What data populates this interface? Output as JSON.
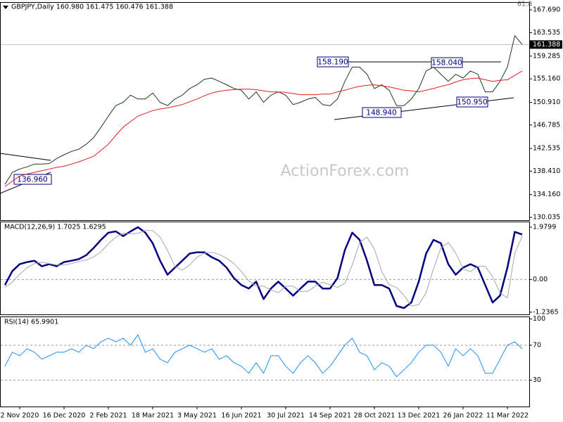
{
  "chart_data": [
    {
      "type": "line",
      "title": "GBPJPY,Daily  160.980 161.475 160.476 161.388",
      "watermark": "ActionForex.com",
      "annotations": [
        "158.190",
        "158.040",
        "148.940",
        "150.950",
        "136.960",
        "61.8"
      ],
      "current_price": 161.388,
      "categories": [
        null,
        null,
        "2 Nov 2020",
        null,
        null,
        null,
        null,
        null,
        "16 Dec 2020",
        null,
        null,
        null,
        null,
        null,
        "2 Feb 2021",
        null,
        null,
        null,
        null,
        null,
        "18 Mar 2021",
        null,
        null,
        null,
        null,
        null,
        "3 May 2021",
        null,
        null,
        null,
        null,
        null,
        "16 Jun 2021",
        null,
        null,
        null,
        null,
        null,
        "30 Jul 2021",
        null,
        null,
        null,
        null,
        null,
        "14 Sep 2021",
        null,
        null,
        null,
        null,
        null,
        "28 Oct 2021",
        null,
        null,
        null,
        null,
        null,
        "13 Dec 2021",
        null,
        null,
        null,
        null,
        null,
        "26 Jan 2022",
        null,
        null,
        null,
        null,
        null,
        "11 Mar 2022",
        null,
        null
      ],
      "series": [
        {
          "name": "GBPJPY",
          "color": "#1e3a1e",
          "values": [
            136.0,
            138.2,
            138.8,
            139.2,
            139.7,
            139.7,
            139.8,
            140.7,
            141.4,
            142.0,
            142.4,
            143.3,
            144.5,
            146.4,
            148.4,
            150.3,
            150.9,
            152.2,
            151.5,
            151.5,
            152.6,
            150.9,
            150.3,
            151.5,
            152.2,
            153.4,
            154.1,
            155.1,
            155.3,
            154.7,
            154.1,
            153.4,
            153.1,
            151.5,
            152.8,
            150.9,
            152.2,
            152.8,
            152.2,
            150.5,
            150.9,
            151.5,
            151.8,
            150.5,
            150.3,
            151.5,
            154.7,
            157.3,
            157.3,
            156.0,
            153.4,
            154.1,
            153.1,
            150.3,
            150.3,
            151.5,
            153.4,
            156.6,
            157.3,
            156.0,
            154.7,
            156.0,
            155.3,
            156.6,
            156.0,
            152.8,
            152.8,
            154.7,
            157.3,
            163.0,
            161.388
          ]
        },
        {
          "name": "MA",
          "color": "#e02020",
          "values": [
            135.6,
            136.6,
            137.5,
            137.9,
            138.2,
            138.5,
            138.8,
            139.1,
            139.3,
            139.7,
            140.1,
            140.6,
            141.1,
            142.2,
            143.3,
            144.9,
            146.4,
            147.4,
            148.4,
            148.9,
            149.4,
            149.7,
            149.9,
            150.2,
            150.5,
            151.0,
            151.5,
            152.1,
            152.6,
            152.9,
            153.1,
            153.2,
            153.3,
            153.3,
            153.2,
            153.0,
            152.8,
            152.8,
            152.7,
            152.5,
            152.3,
            152.3,
            152.3,
            152.4,
            152.4,
            152.8,
            153.1,
            153.5,
            153.8,
            154.0,
            154.1,
            153.9,
            153.7,
            153.4,
            153.1,
            153.0,
            152.8,
            153.1,
            153.4,
            153.8,
            154.1,
            154.6,
            155.0,
            155.2,
            155.3,
            155.0,
            154.7,
            154.9,
            155.0,
            155.8,
            156.6
          ]
        }
      ],
      "ylim": [
        129.526,
        168.962
      ],
      "yticks": [
        {
          "value": 167.69,
          "label": "167.690"
        },
        {
          "value": 163.535,
          "label": "163.535"
        },
        {
          "value": 159.285,
          "label": "159.285"
        },
        {
          "value": 155.16,
          "label": "155.160"
        },
        {
          "value": 150.91,
          "label": "150.910"
        },
        {
          "value": 146.785,
          "label": "146.785"
        },
        {
          "value": 142.535,
          "label": "142.535"
        },
        {
          "value": 138.41,
          "label": "138.410"
        },
        {
          "value": 134.16,
          "label": "134.160"
        },
        {
          "value": 130.035,
          "label": "130.035"
        }
      ]
    },
    {
      "type": "line",
      "title": "MACD(12,26,9) 1.7025 1.6295",
      "series": [
        {
          "name": "MACD",
          "color": "#000080",
          "width": 2.5,
          "values": [
            -0.21,
            0.32,
            0.58,
            0.66,
            0.71,
            0.5,
            0.58,
            0.5,
            0.66,
            0.71,
            0.77,
            0.92,
            1.19,
            1.5,
            1.77,
            1.82,
            1.64,
            1.82,
            1.98,
            1.77,
            1.37,
            0.71,
            0.18,
            0.45,
            0.71,
            0.98,
            1.03,
            1.03,
            0.84,
            0.71,
            0.45,
            0.05,
            -0.21,
            -0.34,
            -0.08,
            -0.74,
            -0.34,
            -0.08,
            -0.34,
            -0.61,
            -0.34,
            -0.08,
            -0.08,
            -0.34,
            -0.34,
            0.05,
            1.11,
            1.77,
            1.5,
            0.71,
            -0.21,
            -0.21,
            -0.34,
            -1.0,
            -1.08,
            -0.87,
            -0.08,
            0.98,
            1.5,
            1.37,
            0.58,
            0.18,
            0.45,
            0.58,
            0.45,
            -0.21,
            -0.87,
            -0.61,
            0.45,
            1.8,
            1.7025
          ]
        },
        {
          "name": "Signal",
          "color": "#a8a8a8",
          "width": 1,
          "values": [
            -0.3,
            -0.1,
            0.2,
            0.45,
            0.6,
            0.65,
            0.6,
            0.55,
            0.55,
            0.6,
            0.68,
            0.74,
            0.85,
            1.05,
            1.35,
            1.6,
            1.75,
            1.73,
            1.75,
            1.85,
            1.85,
            1.6,
            1.1,
            0.5,
            0.35,
            0.55,
            0.85,
            1.0,
            1.03,
            0.95,
            0.8,
            0.6,
            0.3,
            -0.05,
            -0.25,
            -0.25,
            -0.4,
            -0.5,
            -0.25,
            -0.25,
            -0.45,
            -0.45,
            -0.25,
            -0.1,
            -0.2,
            -0.3,
            -0.15,
            0.55,
            1.4,
            1.6,
            1.15,
            0.3,
            -0.2,
            -0.3,
            -0.6,
            -1.0,
            -0.95,
            -0.5,
            0.4,
            1.2,
            1.4,
            1.0,
            0.4,
            0.3,
            0.5,
            0.5,
            0.1,
            -0.5,
            -0.7,
            1.0,
            1.6295
          ]
        }
      ],
      "ylim": [
        -1.32,
        2.165
      ],
      "yticks": [
        1.9799,
        {
          "value": 0,
          "label": "0.00"
        },
        -1.2365
      ],
      "levels": [
        0
      ]
    },
    {
      "type": "line",
      "title": "RSI(14) 65.9901",
      "series": [
        {
          "name": "RSI",
          "color": "#1e90ff",
          "width": 1,
          "values": [
            46,
            62,
            58,
            66,
            62,
            54,
            58,
            62,
            62,
            66,
            62,
            70,
            66,
            74,
            78,
            74,
            78,
            70,
            82,
            62,
            66,
            54,
            50,
            62,
            66,
            70,
            66,
            62,
            66,
            54,
            58,
            50,
            46,
            38,
            50,
            38,
            58,
            58,
            46,
            38,
            50,
            58,
            50,
            38,
            46,
            58,
            70,
            78,
            62,
            58,
            42,
            50,
            46,
            34,
            42,
            50,
            62,
            70,
            70,
            62,
            46,
            66,
            58,
            66,
            58,
            38,
            38,
            54,
            70,
            74,
            65.9901
          ]
        }
      ],
      "ylim": [
        0,
        102
      ],
      "yticks": [
        100,
        70,
        30
      ],
      "levels": [
        70,
        30
      ]
    }
  ]
}
